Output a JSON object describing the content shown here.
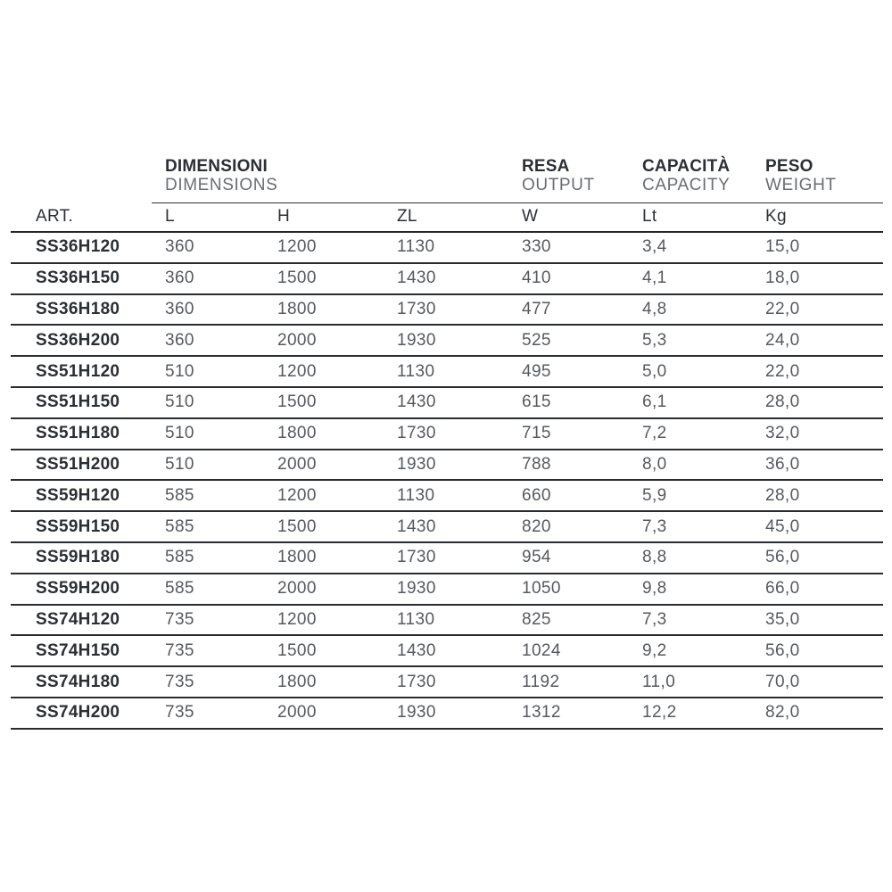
{
  "table": {
    "art_header": "ART.",
    "groups": [
      {
        "title": "DIMENSIONI",
        "subtitle": "DIMENSIONS"
      },
      {
        "title": "RESA",
        "subtitle": "OUTPUT"
      },
      {
        "title": "CAPACITÀ",
        "subtitle": "CAPACITY"
      },
      {
        "title": "PESO",
        "subtitle": "WEIGHT"
      }
    ],
    "columns": [
      "L",
      "H",
      "ZL",
      "W",
      "Lt",
      "Kg"
    ],
    "rows": [
      [
        "SS36H120",
        "360",
        "1200",
        "1130",
        "330",
        "3,4",
        "15,0"
      ],
      [
        "SS36H150",
        "360",
        "1500",
        "1430",
        "410",
        "4,1",
        "18,0"
      ],
      [
        "SS36H180",
        "360",
        "1800",
        "1730",
        "477",
        "4,8",
        "22,0"
      ],
      [
        "SS36H200",
        "360",
        "2000",
        "1930",
        "525",
        "5,3",
        "24,0"
      ],
      [
        "SS51H120",
        "510",
        "1200",
        "1130",
        "495",
        "5,0",
        "22,0"
      ],
      [
        "SS51H150",
        "510",
        "1500",
        "1430",
        "615",
        "6,1",
        "28,0"
      ],
      [
        "SS51H180",
        "510",
        "1800",
        "1730",
        "715",
        "7,2",
        "32,0"
      ],
      [
        "SS51H200",
        "510",
        "2000",
        "1930",
        "788",
        "8,0",
        "36,0"
      ],
      [
        "SS59H120",
        "585",
        "1200",
        "1130",
        "660",
        "5,9",
        "28,0"
      ],
      [
        "SS59H150",
        "585",
        "1500",
        "1430",
        "820",
        "7,3",
        "45,0"
      ],
      [
        "SS59H180",
        "585",
        "1800",
        "1730",
        "954",
        "8,8",
        "56,0"
      ],
      [
        "SS59H200",
        "585",
        "2000",
        "1930",
        "1050",
        "9,8",
        "66,0"
      ],
      [
        "SS74H120",
        "735",
        "1200",
        "1130",
        "825",
        "7,3",
        "35,0"
      ],
      [
        "SS74H150",
        "735",
        "1500",
        "1430",
        "1024",
        "9,2",
        "56,0"
      ],
      [
        "SS74H180",
        "735",
        "1800",
        "1730",
        "1192",
        "11,0",
        "70,0"
      ],
      [
        "SS74H200",
        "735",
        "2000",
        "1930",
        "1312",
        "12,2",
        "82,0"
      ]
    ],
    "colors": {
      "title_dark": "#2c2f35",
      "subtitle_gray": "#6a6d72",
      "value_gray": "#56595e",
      "line_dark": "#292c31",
      "background": "#ffffff"
    }
  }
}
